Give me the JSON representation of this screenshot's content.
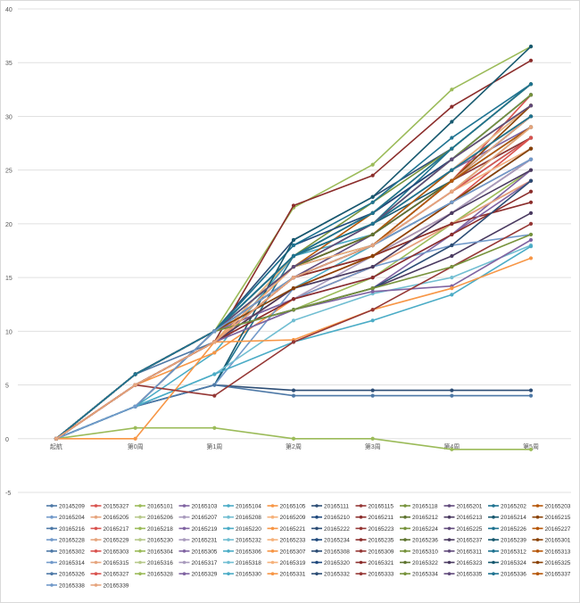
{
  "chart_data": {
    "type": "line",
    "title": "",
    "xlabel": "",
    "ylabel": "",
    "categories": [
      "起航",
      "第0周",
      "第1周",
      "第2周",
      "第3周",
      "第4周",
      "第5周"
    ],
    "ylim": [
      -5,
      40
    ],
    "yticks": [
      -5,
      0,
      5,
      10,
      15,
      20,
      25,
      30,
      35,
      40
    ],
    "grid": true,
    "legend_position": "bottom",
    "series": [
      {
        "name": "20145209",
        "values": [
          0,
          6,
          9,
          17,
          21,
          26,
          31
        ]
      },
      {
        "name": "20155327",
        "values": [
          0,
          5,
          9,
          15,
          18,
          24,
          32
        ]
      },
      {
        "name": "20165101",
        "values": [
          0,
          6,
          10,
          21.5,
          25.5,
          32.5,
          36.5
        ]
      },
      {
        "name": "20165103",
        "values": [
          0,
          5,
          9,
          16,
          20,
          25,
          29
        ]
      },
      {
        "name": "20165104",
        "values": [
          0,
          3,
          8,
          17,
          19,
          25,
          31
        ]
      },
      {
        "name": "20165105",
        "values": [
          0,
          5,
          8,
          13,
          16,
          21,
          26
        ]
      },
      {
        "name": "20165111",
        "values": [
          0,
          3,
          10,
          18.5,
          22.5,
          27,
          33
        ]
      },
      {
        "name": "20165115",
        "values": [
          0,
          5,
          9,
          15,
          18,
          23,
          28
        ]
      },
      {
        "name": "20165118",
        "values": [
          0,
          6,
          10,
          17,
          22,
          27,
          33
        ]
      },
      {
        "name": "20165201",
        "values": [
          0,
          5,
          9,
          16,
          19,
          24,
          30
        ]
      },
      {
        "name": "20165202",
        "values": [
          0,
          3,
          5,
          17,
          20,
          27,
          33
        ]
      },
      {
        "name": "20165203",
        "values": [
          0,
          6,
          10,
          16,
          21,
          26,
          31
        ]
      },
      {
        "name": "20165204",
        "values": [
          0,
          6,
          10,
          17,
          20,
          25,
          30
        ]
      },
      {
        "name": "20165205",
        "values": [
          0,
          5,
          9,
          14,
          17,
          21,
          26
        ]
      },
      {
        "name": "20165206",
        "values": [
          0,
          6,
          10,
          15,
          17,
          22,
          27
        ]
      },
      {
        "name": "20165207",
        "values": [
          0,
          6,
          10,
          17,
          20,
          25,
          30
        ]
      },
      {
        "name": "20165208",
        "values": [
          0,
          6,
          10,
          17,
          20,
          26,
          31
        ]
      },
      {
        "name": "20165209",
        "values": [
          0,
          6,
          10,
          16,
          19,
          25,
          30
        ]
      },
      {
        "name": "20165210",
        "values": [
          0,
          3,
          10,
          18,
          21,
          26,
          32
        ]
      },
      {
        "name": "20165211",
        "values": [
          0,
          5,
          9,
          21.7,
          24.5,
          30.9,
          35.2
        ]
      },
      {
        "name": "20165212",
        "values": [
          0,
          6,
          10,
          15,
          18,
          24,
          29
        ]
      },
      {
        "name": "20165213",
        "values": [
          0,
          5,
          9,
          16,
          18,
          22,
          26
        ]
      },
      {
        "name": "20165214",
        "values": [
          0,
          6,
          10,
          16,
          20,
          24,
          28
        ]
      },
      {
        "name": "20165215",
        "values": [
          0,
          3,
          10,
          14,
          17,
          20,
          24
        ]
      },
      {
        "name": "20165216",
        "values": [
          0,
          6,
          10,
          16,
          19,
          24,
          29
        ]
      },
      {
        "name": "20165217",
        "values": [
          0,
          5,
          9,
          13,
          16,
          20,
          24
        ]
      },
      {
        "name": "20165218",
        "values": [
          0,
          6,
          10,
          12,
          15,
          20,
          25
        ]
      },
      {
        "name": "20165219",
        "values": [
          0,
          6,
          10,
          12,
          14,
          19,
          25
        ]
      },
      {
        "name": "20165220",
        "values": [
          0,
          6,
          10,
          14,
          18,
          23,
          28
        ]
      },
      {
        "name": "20165221",
        "values": [
          0,
          5,
          9,
          15,
          17,
          22,
          27
        ]
      },
      {
        "name": "20165222",
        "values": [
          0,
          3,
          5,
          4.5,
          4.5,
          4.5,
          4.5
        ]
      },
      {
        "name": "20165223",
        "values": [
          0,
          5,
          9,
          15,
          17,
          21,
          26
        ]
      },
      {
        "name": "20165224",
        "values": [
          0,
          5,
          9,
          17,
          20,
          26,
          31
        ]
      },
      {
        "name": "20165225",
        "values": [
          0,
          5,
          9,
          16,
          18,
          24,
          30
        ]
      },
      {
        "name": "20165226",
        "values": [
          0,
          6,
          10,
          18,
          22,
          28,
          33
        ]
      },
      {
        "name": "20165227",
        "values": [
          0,
          5,
          9,
          15,
          18,
          23,
          29
        ]
      },
      {
        "name": "20165228",
        "values": [
          0,
          6,
          10,
          13,
          16,
          21,
          26
        ]
      },
      {
        "name": "20165229",
        "values": [
          0,
          5,
          9,
          14,
          16,
          20,
          24
        ]
      },
      {
        "name": "20165230",
        "values": [
          0,
          6,
          10,
          16,
          19,
          24,
          30
        ]
      },
      {
        "name": "20165231",
        "values": [
          0,
          6,
          10,
          13,
          17,
          21,
          26
        ]
      },
      {
        "name": "20165232",
        "values": [
          0,
          6,
          10,
          16,
          19,
          25,
          31
        ]
      },
      {
        "name": "20165233",
        "values": [
          0,
          5,
          9,
          17,
          20,
          25,
          31
        ]
      },
      {
        "name": "20165234",
        "values": [
          0,
          3,
          10,
          17,
          21,
          26,
          32
        ]
      },
      {
        "name": "20165235",
        "values": [
          0,
          5,
          9,
          15,
          17,
          20,
          22
        ]
      },
      {
        "name": "20165236",
        "values": [
          0,
          6,
          10,
          17,
          21,
          27,
          33
        ]
      },
      {
        "name": "20165237",
        "values": [
          0,
          5,
          9,
          12,
          14,
          17,
          21
        ]
      },
      {
        "name": "20165239",
        "values": [
          0,
          3,
          5,
          18.5,
          22.5,
          29.5,
          36.5
        ]
      },
      {
        "name": "20165301",
        "values": [
          0,
          5,
          9,
          15,
          18,
          24,
          31
        ]
      },
      {
        "name": "20165302",
        "values": [
          0,
          6,
          10,
          16,
          19,
          24,
          30
        ]
      },
      {
        "name": "20165303",
        "values": [
          0,
          5,
          9,
          14,
          17,
          22,
          28
        ]
      },
      {
        "name": "20165304",
        "values": [
          0,
          6,
          10,
          15,
          18,
          23,
          29
        ]
      },
      {
        "name": "20165305",
        "values": [
          0,
          6,
          10,
          13,
          15,
          19,
          24
        ]
      },
      {
        "name": "20165306",
        "values": [
          0,
          6,
          10,
          16,
          18,
          22,
          27
        ]
      },
      {
        "name": "20165307",
        "values": [
          0,
          5,
          9,
          14,
          17,
          22,
          27
        ]
      },
      {
        "name": "20165308",
        "values": [
          0,
          6,
          10,
          15,
          18,
          24,
          30
        ]
      },
      {
        "name": "20165309",
        "values": [
          0,
          5,
          9,
          16,
          19,
          24,
          28
        ]
      },
      {
        "name": "20165310",
        "values": [
          0,
          6,
          10,
          17,
          20,
          26,
          32
        ]
      },
      {
        "name": "20165311",
        "values": [
          0,
          6,
          10,
          15,
          19,
          24,
          29
        ]
      },
      {
        "name": "20165312",
        "values": [
          0,
          6,
          10,
          17,
          21,
          27,
          33
        ]
      },
      {
        "name": "20165313",
        "values": [
          0,
          5,
          9,
          16,
          19,
          25,
          30
        ]
      },
      {
        "name": "20165314",
        "values": [
          0,
          3,
          5,
          14,
          16,
          18,
          19
        ]
      },
      {
        "name": "20165315",
        "values": [
          0,
          5,
          9,
          15,
          18,
          24,
          30
        ]
      },
      {
        "name": "20165316",
        "values": [
          0,
          6,
          10,
          16,
          20,
          25,
          30
        ]
      },
      {
        "name": "20165317",
        "values": [
          0,
          5,
          9,
          15,
          18,
          23,
          27
        ]
      },
      {
        "name": "20165318",
        "values": [
          0,
          3,
          6,
          11,
          13.5,
          15,
          18
        ]
      },
      {
        "name": "20165319",
        "values": [
          0,
          5,
          9,
          16,
          18,
          23,
          27
        ]
      },
      {
        "name": "20165320",
        "values": [
          0,
          6,
          10,
          15,
          18,
          22,
          27
        ]
      },
      {
        "name": "20165321",
        "values": [
          0,
          5,
          9,
          13,
          15,
          19,
          23
        ]
      },
      {
        "name": "20165322",
        "values": [
          0,
          6,
          10,
          16,
          19,
          24,
          29
        ]
      },
      {
        "name": "20165323",
        "values": [
          0,
          5,
          9,
          14,
          16,
          21,
          25
        ]
      },
      {
        "name": "20165324",
        "values": [
          0,
          6,
          10,
          17,
          20,
          25,
          30
        ]
      },
      {
        "name": "20165325",
        "values": [
          0,
          6,
          10,
          14,
          17,
          22,
          27
        ]
      },
      {
        "name": "20165326",
        "values": [
          0,
          3,
          5,
          4,
          4,
          4,
          4
        ]
      },
      {
        "name": "20165327",
        "values": [
          0,
          5,
          9,
          15,
          18,
          23,
          28
        ]
      },
      {
        "name": "20165328",
        "values": [
          0,
          1,
          1,
          0,
          0,
          -1,
          -1
        ]
      },
      {
        "name": "20165329",
        "values": [
          0,
          5,
          9,
          12,
          13.7,
          14.2,
          18.5
        ]
      },
      {
        "name": "20165330",
        "values": [
          0,
          3,
          6,
          9,
          11,
          13.4,
          17.9
        ]
      },
      {
        "name": "20165331",
        "values": [
          0,
          0,
          9,
          9.2,
          12,
          14,
          16.8
        ]
      },
      {
        "name": "20165332",
        "values": [
          0,
          6,
          10,
          12,
          14,
          18,
          24
        ]
      },
      {
        "name": "20165333",
        "values": [
          0,
          5,
          4,
          9,
          12,
          16,
          20
        ]
      },
      {
        "name": "20165334",
        "values": [
          0,
          6,
          10,
          12,
          14,
          16,
          19
        ]
      },
      {
        "name": "20165335",
        "values": [
          0,
          6,
          10,
          16,
          20,
          26,
          31
        ]
      },
      {
        "name": "20165336",
        "values": [
          0,
          6,
          10,
          17,
          20,
          25,
          30
        ]
      },
      {
        "name": "20165337",
        "values": [
          0,
          5,
          9,
          15,
          18,
          24,
          29
        ]
      },
      {
        "name": "20165338",
        "values": [
          0,
          3,
          10,
          15,
          18,
          22,
          26
        ]
      },
      {
        "name": "20165339",
        "values": [
          0,
          5,
          9,
          15,
          18,
          23,
          29
        ]
      }
    ]
  }
}
